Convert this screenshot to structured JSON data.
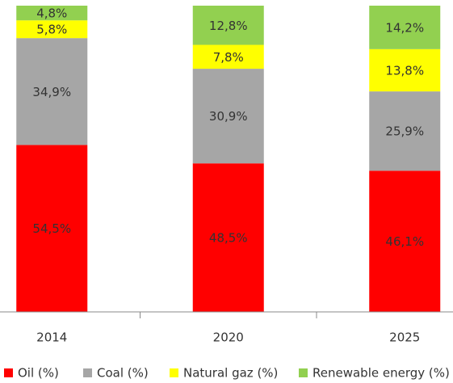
{
  "chart_data": {
    "type": "stacked_bar",
    "categories": [
      "2014",
      "2020",
      "2025"
    ],
    "series": [
      {
        "name": "Oil (%)",
        "color": "#ff0000",
        "values": [
          54.5,
          48.5,
          46.1
        ],
        "value_labels": [
          "54,5%",
          "48,5%",
          "46,1%"
        ]
      },
      {
        "name": "Coal (%)",
        "color": "#a6a6a6",
        "values": [
          34.9,
          30.9,
          25.9
        ],
        "value_labels": [
          "34,9%",
          "30,9%",
          "25,9%"
        ]
      },
      {
        "name": "Natural gaz (%)",
        "color": "#ffff00",
        "values": [
          5.8,
          7.8,
          13.8
        ],
        "value_labels": [
          "5,8%",
          "7,8%",
          "13,8%"
        ]
      },
      {
        "name": "Renewable energy (%)",
        "color": "#92d050",
        "values": [
          4.8,
          12.8,
          14.2
        ],
        "value_labels": [
          "4,8%",
          "12,8%",
          "14,2%"
        ]
      }
    ],
    "legend": "bottom"
  }
}
